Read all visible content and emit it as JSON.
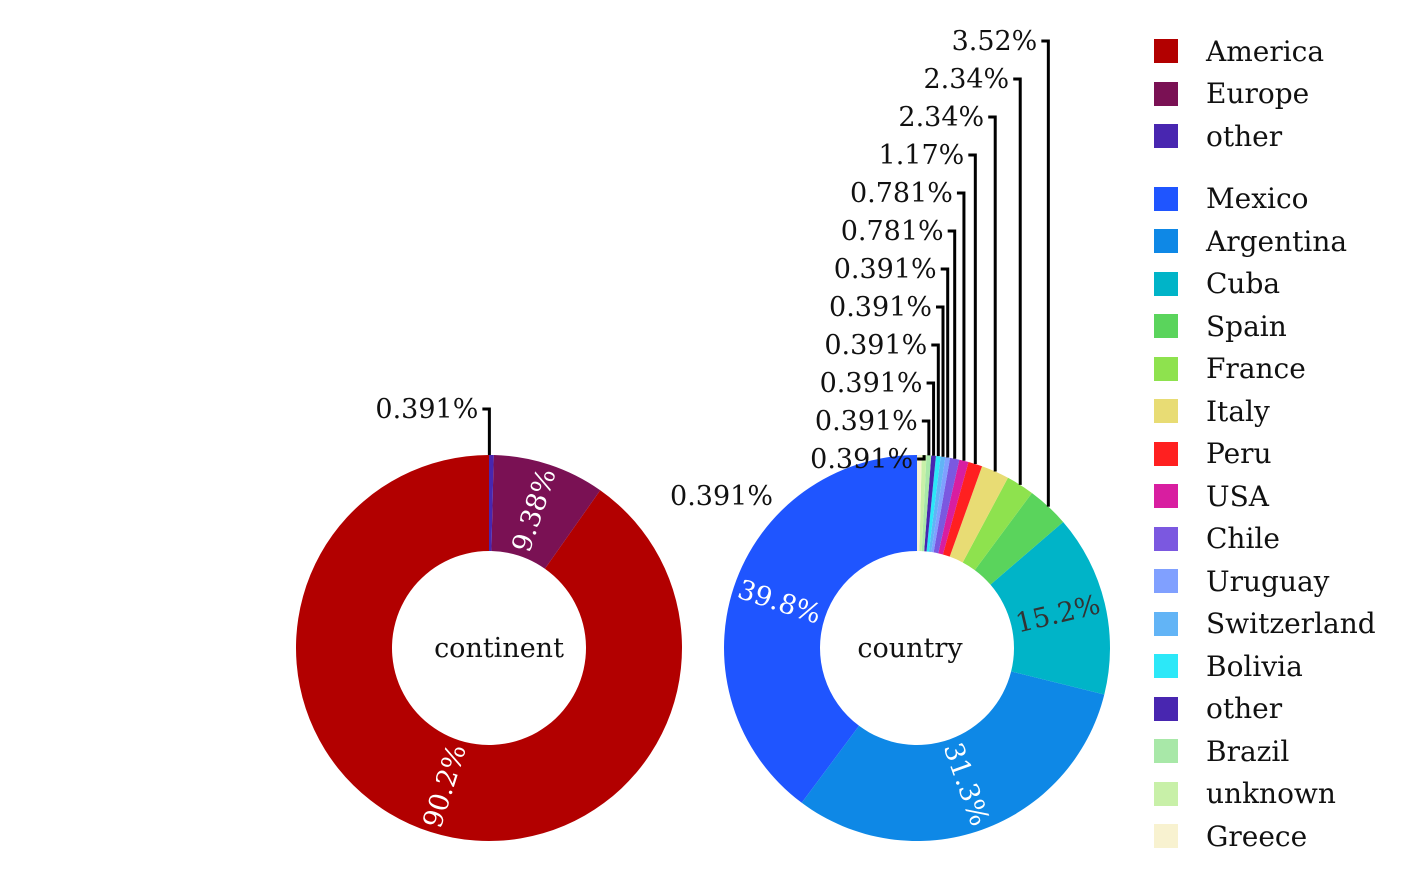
{
  "chart_data": [
    {
      "type": "pie",
      "title": "continent",
      "slices": [
        {
          "label": "America",
          "value": 90.2,
          "display": "90.2%",
          "color": "#b20000"
        },
        {
          "label": "Europe",
          "value": 9.38,
          "display": "9.38%",
          "color": "#7a1154"
        },
        {
          "label": "other",
          "value": 0.391,
          "display": "0.391%",
          "color": "#4826b0"
        }
      ]
    },
    {
      "type": "pie",
      "title": "country",
      "slices": [
        {
          "label": "Mexico",
          "value": 39.8,
          "display": "39.8%",
          "color": "#1f55ff"
        },
        {
          "label": "Argentina",
          "value": 31.3,
          "display": "31.3%",
          "color": "#0e88e6"
        },
        {
          "label": "Cuba",
          "value": 15.2,
          "display": "15.2%",
          "color": "#00b4c8"
        },
        {
          "label": "Spain",
          "value": 3.52,
          "display": "3.52%",
          "color": "#5ad45c"
        },
        {
          "label": "France",
          "value": 2.34,
          "display": "2.34%",
          "color": "#8ee24e"
        },
        {
          "label": "Italy",
          "value": 2.34,
          "display": "2.34%",
          "color": "#e8dc74"
        },
        {
          "label": "Peru",
          "value": 1.17,
          "display": "1.17%",
          "color": "#ff2020"
        },
        {
          "label": "USA",
          "value": 0.781,
          "display": "0.781%",
          "color": "#d81ea0"
        },
        {
          "label": "Chile",
          "value": 0.781,
          "display": "0.781%",
          "color": "#7b58e0"
        },
        {
          "label": "Uruguay",
          "value": 0.391,
          "display": "0.391%",
          "color": "#80a0ff"
        },
        {
          "label": "Switzerland",
          "value": 0.391,
          "display": "0.391%",
          "color": "#62b4f6"
        },
        {
          "label": "Bolivia",
          "value": 0.391,
          "display": "0.391%",
          "color": "#2ce8f8"
        },
        {
          "label": "other",
          "value": 0.391,
          "display": "0.391%",
          "color": "#4826b0"
        },
        {
          "label": "Brazil",
          "value": 0.391,
          "display": "0.391%",
          "color": "#a8e8a8"
        },
        {
          "label": "unknown",
          "value": 0.391,
          "display": "0.391%",
          "color": "#c8f0a8"
        },
        {
          "label": "Greece",
          "value": 0.391,
          "display": "0.391%",
          "color": "#f8f2d0"
        }
      ]
    }
  ],
  "legend": {
    "groups": [
      [
        {
          "label": "America",
          "color": "#b20000"
        },
        {
          "label": "Europe",
          "color": "#7a1154"
        },
        {
          "label": "other",
          "color": "#4826b0"
        }
      ],
      [
        {
          "label": "Mexico",
          "color": "#1f55ff"
        },
        {
          "label": "Argentina",
          "color": "#0e88e6"
        },
        {
          "label": "Cuba",
          "color": "#00b4c8"
        },
        {
          "label": "Spain",
          "color": "#5ad45c"
        },
        {
          "label": "France",
          "color": "#8ee24e"
        },
        {
          "label": "Italy",
          "color": "#e8dc74"
        },
        {
          "label": "Peru",
          "color": "#ff2020"
        },
        {
          "label": "USA",
          "color": "#d81ea0"
        },
        {
          "label": "Chile",
          "color": "#7b58e0"
        },
        {
          "label": "Uruguay",
          "color": "#80a0ff"
        },
        {
          "label": "Switzerland",
          "color": "#62b4f6"
        },
        {
          "label": "Bolivia",
          "color": "#2ce8f8"
        },
        {
          "label": "other",
          "color": "#4826b0"
        },
        {
          "label": "Brazil",
          "color": "#a8e8a8"
        },
        {
          "label": "unknown",
          "color": "#c8f0a8"
        },
        {
          "label": "Greece",
          "color": "#f8f2d0"
        }
      ]
    ]
  }
}
